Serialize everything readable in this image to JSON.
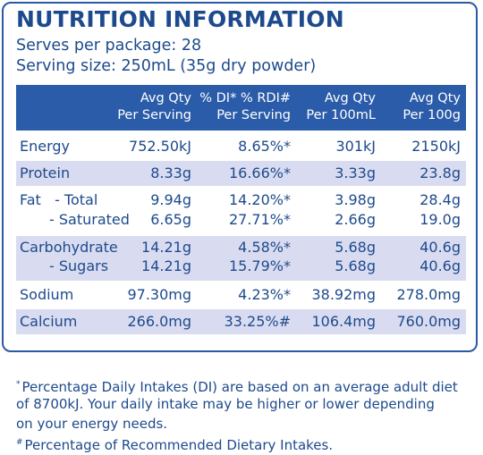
{
  "title": "NUTRITION INFORMATION",
  "serves": "Serves per package: 28",
  "serving_size": "Serving size: 250mL (35g dry powder)",
  "columns": [
    {
      "l1": "Avg Qty",
      "l2": "Per Serving"
    },
    {
      "l1": "% DI* % RDI#",
      "l2": "Per Serving"
    },
    {
      "l1": "Avg Qty",
      "l2": "Per 100mL"
    },
    {
      "l1": "Avg Qty",
      "l2": "Per 100g"
    }
  ],
  "rows": {
    "energy": {
      "name": "Energy",
      "per_serving": "752.50kJ",
      "di": "8.65%*",
      "per_100ml": "301kJ",
      "per_100g": "2150kJ"
    },
    "protein": {
      "name": "Protein",
      "per_serving": "8.33g",
      "di": "16.66%*",
      "per_100ml": "3.33g",
      "per_100g": "23.8g"
    },
    "fat_total": {
      "name": "Fat   - Total",
      "per_serving": "9.94g",
      "di": "14.20%*",
      "per_100ml": "3.98g",
      "per_100g": "28.4g"
    },
    "fat_saturated": {
      "name": "- Saturated",
      "per_serving": "6.65g",
      "di": "27.71%*",
      "per_100ml": "2.66g",
      "per_100g": "19.0g"
    },
    "carbohydrate": {
      "name": "Carbohydrate",
      "per_serving": "14.21g",
      "di": "4.58%*",
      "per_100ml": "5.68g",
      "per_100g": "40.6g"
    },
    "sugars": {
      "name": "- Sugars",
      "per_serving": "14.21g",
      "di": "15.79%*",
      "per_100ml": "5.68g",
      "per_100g": "40.6g"
    },
    "sodium": {
      "name": "Sodium",
      "per_serving": "97.30mg",
      "di": "4.23%*",
      "per_100ml": "38.92mg",
      "per_100g": "278.0mg"
    },
    "calcium": {
      "name": "Calcium",
      "per_serving": "266.0mg",
      "di": "33.25%#",
      "per_100ml": "106.4mg",
      "per_100g": "760.0mg"
    }
  },
  "footnotes": {
    "di_mark": "*",
    "di_line1": "Percentage Daily Intakes (DI) are based on an average adult diet",
    "di_line2": "of 8700kJ. Your daily intake may be higher or lower depending",
    "di_line3": "on your energy needs.",
    "rdi_mark": "#",
    "rdi_line": "Percentage of Recommended Dietary Intakes."
  },
  "colors": {
    "text": "#1d4a8c",
    "header_bg": "#2b5ca9",
    "band": "#d9dcf1",
    "border": "#2a5aa6"
  }
}
